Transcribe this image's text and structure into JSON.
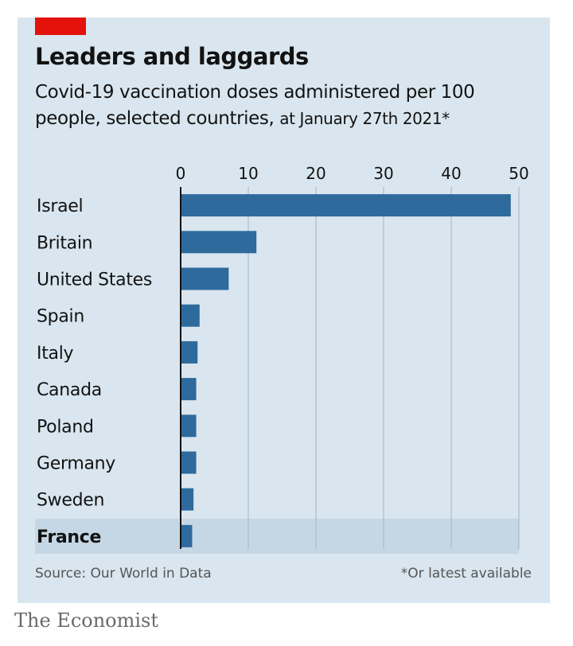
{
  "header": {
    "title": "Leaders and laggards",
    "subtitle_main": "Covid-19 vaccination doses administered per 100 people, selected countries,",
    "subtitle_note": "at January 27th 2021*"
  },
  "footer": {
    "source": "Source: Our World in Data",
    "note": "*Or latest available",
    "brand": "The Economist"
  },
  "colors": {
    "bar": "#2e6a9c",
    "panel": "#d9e6ef",
    "highlight_row": "#c5d7e4",
    "gridline": "#a8bccb",
    "accent": "#e3120b"
  },
  "chart_data": {
    "type": "bar",
    "orientation": "horizontal",
    "categories": [
      "Israel",
      "Britain",
      "United States",
      "Spain",
      "Italy",
      "Canada",
      "Poland",
      "Germany",
      "Sweden",
      "France"
    ],
    "values": [
      48.8,
      11.2,
      7.1,
      2.8,
      2.5,
      2.3,
      2.3,
      2.3,
      1.9,
      1.7
    ],
    "highlight": "France",
    "xlim": [
      0,
      50
    ],
    "xticks": [
      0,
      10,
      20,
      30,
      40,
      50
    ],
    "grid": true
  }
}
